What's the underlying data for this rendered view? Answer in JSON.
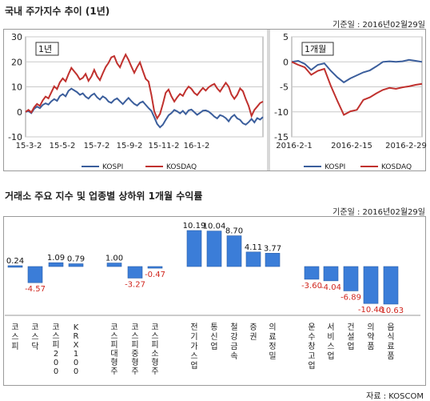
{
  "section1": {
    "title": "국내 주가지수 추이 (1년)",
    "date_label": "기준일 : 2016년02월29일"
  },
  "section2": {
    "title": "거래소 주요 지수 및 업종별 상하위 1개월 수익률",
    "date_label": "기준일 : 2016년02월29일"
  },
  "source": "자료 : KOSCOM",
  "colors": {
    "kospi": "#3b5e9c",
    "kosdaq": "#c0312e",
    "bar": "#3b7dd8",
    "neg_label": "#d0261e"
  },
  "chart_data": [
    {
      "type": "line",
      "tag": "1년",
      "ylim": [
        -10,
        30
      ],
      "yticks": [
        -10,
        0,
        10,
        20,
        30
      ],
      "xticks": [
        "15-3-2",
        "15-5-2",
        "15-7-2",
        "15-9-2",
        "15-11-2",
        "16-1-2"
      ],
      "series": [
        {
          "name": "KOSPI",
          "values": [
            0,
            0.3,
            -0.5,
            1.2,
            2.1,
            1.5,
            2.8,
            3.4,
            2.9,
            4.2,
            5.1,
            4.4,
            6.3,
            7.1,
            6.2,
            8.4,
            9.3,
            8.6,
            7.9,
            6.8,
            7.4,
            6.1,
            5.3,
            6.6,
            7.3,
            5.8,
            4.9,
            6.2,
            5.5,
            4.1,
            3.6,
            4.8,
            5.4,
            4.2,
            3.1,
            4.4,
            5.6,
            4.3,
            3.2,
            2.5,
            3.6,
            4.1,
            2.8,
            1.5,
            0.4,
            -2.1,
            -4.8,
            -6.2,
            -5.1,
            -3.2,
            -1.4,
            -0.5,
            0.8,
            0.2,
            -0.6,
            0.4,
            -0.9,
            0.6,
            0.9,
            -0.1,
            -1.2,
            -0.4,
            0.5,
            0.6,
            0.1,
            -0.8,
            -1.9,
            -2.6,
            -1.3,
            -1.7,
            -2.5,
            -3.8,
            -2.1,
            -1.2,
            -2.6,
            -3.2,
            -4.6,
            -5.1,
            -4.1,
            -2.8,
            -4.2,
            -2.5,
            -3.1,
            -2.1
          ]
        },
        {
          "name": "KOSDAQ",
          "values": [
            0,
            0.8,
            -0.2,
            1.8,
            3.2,
            2.4,
            4.6,
            6.1,
            5.4,
            7.8,
            10.2,
            9.1,
            11.8,
            13.4,
            12.2,
            15.1,
            17.6,
            16.2,
            14.8,
            12.9,
            13.6,
            15.2,
            12.4,
            14.1,
            16.8,
            14.2,
            12.7,
            15.4,
            17.9,
            19.6,
            21.8,
            22.3,
            19.4,
            17.8,
            20.6,
            22.9,
            20.8,
            18.1,
            15.6,
            17.9,
            19.8,
            16.4,
            13.2,
            12.1,
            6.8,
            0.2,
            -2.6,
            -0.8,
            3.2,
            7.6,
            8.9,
            6.2,
            4.1,
            5.8,
            7.2,
            6.4,
            8.6,
            10.1,
            9.2,
            7.6,
            6.7,
            8.2,
            9.6,
            8.5,
            9.8,
            10.6,
            11.2,
            9.4,
            8.1,
            9.9,
            11.6,
            10.1,
            6.9,
            5.2,
            6.8,
            9.4,
            8.2,
            5.1,
            2.4,
            -1.6,
            0.8,
            2.1,
            3.5,
            4.1
          ]
        }
      ]
    },
    {
      "type": "line",
      "tag": "1개월",
      "ylim": [
        -15,
        5
      ],
      "yticks": [
        -15,
        -10,
        -5,
        0,
        5
      ],
      "xticks": [
        "2016-2-1",
        "2016-2-15",
        "2016-2-29"
      ],
      "series": [
        {
          "name": "KOSPI",
          "values": [
            0,
            0.2,
            -0.4,
            -1.6,
            -0.6,
            -0.3,
            -1.8,
            -3.1,
            -4.1,
            -3.3,
            -2.7,
            -2.1,
            -1.7,
            -0.9,
            0,
            0.1,
            0,
            0.1,
            0.4,
            0.2,
            0
          ]
        },
        {
          "name": "KOSDAQ",
          "values": [
            0,
            -0.6,
            -1.1,
            -2.6,
            -1.8,
            -1.4,
            -4.8,
            -7.8,
            -10.6,
            -9.9,
            -9.6,
            -7.6,
            -7.1,
            -6.3,
            -5.6,
            -5.2,
            -5.4,
            -5.1,
            -4.9,
            -4.6,
            -4.4
          ]
        }
      ]
    },
    {
      "type": "bar",
      "ylim": [
        -12,
        12
      ],
      "categories": [
        "코스피",
        "코스닥",
        "코스피200",
        "KRX100",
        "코스피대형주",
        "코스피중형주",
        "코스피소형주",
        "전기가스업",
        "통신업",
        "철강금속",
        "증권",
        "의료정밀",
        "운수창고업",
        "서비스업",
        "건설업",
        "의약품",
        "음식료품"
      ],
      "values": [
        0.24,
        -4.57,
        1.09,
        0.79,
        1.0,
        -3.27,
        -0.47,
        10.19,
        10.04,
        8.7,
        4.11,
        3.77,
        -3.6,
        -4.04,
        -6.89,
        -10.46,
        -10.63
      ],
      "labels": [
        "0.24",
        "-4.57",
        "1.09",
        "0.79",
        "1.00",
        "-3.27",
        "-0.47",
        "10.19",
        "10.04",
        "8.70",
        "4.11",
        "3.77",
        "-3.60",
        "-4.04",
        "-6.89",
        "-10.46",
        "-10.63"
      ]
    }
  ]
}
